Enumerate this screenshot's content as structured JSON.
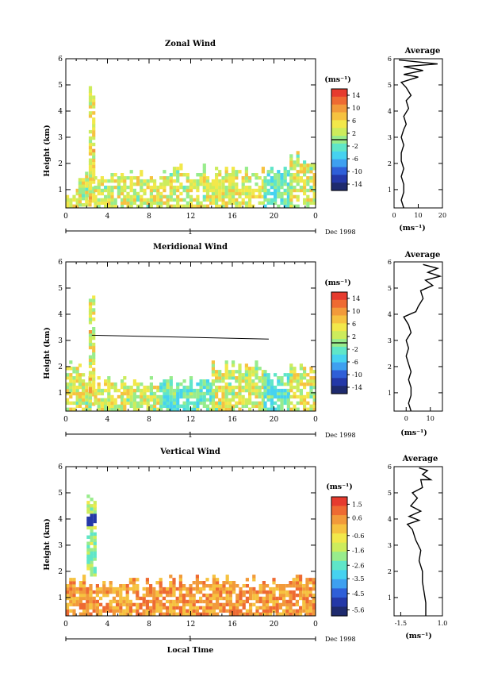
{
  "chart_data": [
    {
      "type": "heatmap",
      "title": "Zonal Wind",
      "ylabel": "Height (km)",
      "xlabel": "",
      "x_ticks": [
        "0",
        "4",
        "8",
        "12",
        "16",
        "20",
        "0"
      ],
      "xlim": [
        0,
        24
      ],
      "ylim": [
        0.3,
        6
      ],
      "y_ticks": [
        "1",
        "2",
        "3",
        "4",
        "5",
        "6"
      ],
      "day_label": "1",
      "month_label": "Dec 1998",
      "colorbar": {
        "unit": "(ms⁻¹)",
        "labels": [
          "14",
          "10",
          "6",
          "2",
          "-2",
          "-6",
          "-10",
          "-14"
        ],
        "range": [
          -16,
          16
        ],
        "zero_line": 0
      },
      "profile": {
        "title": "Average",
        "xlabel": "(ms⁻¹)",
        "x_ticks": [
          "0",
          "10",
          "20"
        ],
        "xlim": [
          0,
          20
        ],
        "y_ticks": [
          "1",
          "2",
          "3",
          "4",
          "5",
          "6"
        ],
        "points": [
          [
            4,
            0.3
          ],
          [
            3,
            0.6
          ],
          [
            4,
            0.9
          ],
          [
            4,
            1.2
          ],
          [
            3,
            1.5
          ],
          [
            4,
            1.8
          ],
          [
            3,
            2.1
          ],
          [
            3,
            2.4
          ],
          [
            4,
            2.7
          ],
          [
            3,
            3
          ],
          [
            4,
            3.3
          ],
          [
            5,
            3.5
          ],
          [
            4,
            3.8
          ],
          [
            6,
            4.1
          ],
          [
            5,
            4.4
          ],
          [
            7,
            4.6
          ],
          [
            5,
            4.9
          ],
          [
            3,
            5.1
          ],
          [
            10,
            5.3
          ],
          [
            4,
            5.4
          ],
          [
            12,
            5.55
          ],
          [
            4,
            5.7
          ],
          [
            18,
            5.8
          ],
          [
            2,
            5.95
          ]
        ]
      },
      "field": {
        "bins": [
          [
            0,
            1.2,
            0.3,
            1.1,
            "low"
          ],
          [
            1.2,
            2.2,
            0.35,
            1.6,
            "mid"
          ],
          [
            2.2,
            2.7,
            0.5,
            5.0,
            "mixpos"
          ],
          [
            2.7,
            5.5,
            0.3,
            1.6,
            "mid"
          ],
          [
            5.5,
            9,
            0.3,
            1.7,
            "mid"
          ],
          [
            9,
            14,
            0.3,
            1.9,
            "mid"
          ],
          [
            14,
            19,
            0.3,
            1.9,
            "low"
          ],
          [
            19,
            21.5,
            0.3,
            2.0,
            "cyan"
          ],
          [
            21.5,
            24,
            0.3,
            2.4,
            "mid"
          ]
        ]
      }
    },
    {
      "type": "heatmap",
      "title": "Meridional Wind",
      "ylabel": "Height (km)",
      "xlabel": "",
      "x_ticks": [
        "0",
        "4",
        "8",
        "12",
        "16",
        "20",
        "0"
      ],
      "xlim": [
        0,
        24
      ],
      "ylim": [
        0.3,
        6
      ],
      "y_ticks": [
        "1",
        "2",
        "3",
        "4",
        "5",
        "6"
      ],
      "day_label": "1",
      "month_label": "Dec 1998",
      "colorbar": {
        "unit": "(ms⁻¹)",
        "labels": [
          "14",
          "10",
          "6",
          "2",
          "-2",
          "-6",
          "-10",
          "-14"
        ],
        "range": [
          -16,
          16
        ],
        "zero_line": 0
      },
      "profile": {
        "title": "Average",
        "xlabel": "(ms⁻¹)",
        "x_ticks": [
          "0",
          "10"
        ],
        "xlim": [
          -5,
          15
        ],
        "y_ticks": [
          "1",
          "2",
          "3",
          "4",
          "5",
          "6"
        ],
        "points": [
          [
            2,
            0.3
          ],
          [
            1,
            0.6
          ],
          [
            2,
            0.9
          ],
          [
            2,
            1.2
          ],
          [
            1,
            1.5
          ],
          [
            2,
            1.8
          ],
          [
            1,
            2.1
          ],
          [
            0,
            2.4
          ],
          [
            1,
            2.7
          ],
          [
            0,
            3.0
          ],
          [
            2,
            3.3
          ],
          [
            1,
            3.6
          ],
          [
            -1,
            3.9
          ],
          [
            4,
            4.1
          ],
          [
            5,
            4.3
          ],
          [
            7,
            4.6
          ],
          [
            6,
            4.9
          ],
          [
            11,
            5.1
          ],
          [
            8,
            5.3
          ],
          [
            14,
            5.45
          ],
          [
            9,
            5.6
          ],
          [
            13,
            5.75
          ],
          [
            7,
            5.9
          ]
        ]
      },
      "field": {
        "bins": [
          [
            0,
            1.2,
            0.3,
            2.2,
            "mid"
          ],
          [
            1.2,
            2.2,
            0.3,
            2.0,
            "mid"
          ],
          [
            2.2,
            2.7,
            0.5,
            5.0,
            "mixpos"
          ],
          [
            2.7,
            5.5,
            0.3,
            1.6,
            "mid"
          ],
          [
            5.5,
            9,
            0.3,
            1.7,
            "mid"
          ],
          [
            9,
            14,
            0.3,
            1.7,
            "cyan"
          ],
          [
            14,
            19,
            0.3,
            2.2,
            "mid"
          ],
          [
            19,
            21.5,
            0.3,
            1.9,
            "cyan"
          ],
          [
            21.5,
            24,
            0.3,
            2.2,
            "mid"
          ]
        ]
      },
      "annotation_line": {
        "from": [
          2.5,
          3.2
        ],
        "to": [
          19.5,
          3.05
        ]
      }
    },
    {
      "type": "heatmap",
      "title": "Vertical Wind",
      "ylabel": "Height (km)",
      "xlabel": "Local Time",
      "x_ticks": [
        "0",
        "4",
        "8",
        "12",
        "16",
        "20",
        "0"
      ],
      "xlim": [
        0,
        24
      ],
      "ylim": [
        0.3,
        6
      ],
      "y_ticks": [
        "1",
        "2",
        "3",
        "4",
        "5",
        "6"
      ],
      "day_label": "1",
      "month_label": "Dec 1998",
      "colorbar": {
        "unit": "(ms⁻¹)",
        "labels": [
          "1.5",
          "0.6",
          "-0.6",
          "-1.6",
          "-2.6",
          "-3.5",
          "-4.5",
          "-5.6"
        ],
        "range": [
          -6,
          2
        ],
        "zero_line": null
      },
      "profile": {
        "title": "Average",
        "xlabel": "(ms⁻¹)",
        "x_ticks": [
          "-1.5",
          "1.0"
        ],
        "xlim": [
          -1.9,
          1.0
        ],
        "y_ticks": [
          "1",
          "2",
          "3",
          "4",
          "5",
          "6"
        ],
        "points": [
          [
            0,
            0.3
          ],
          [
            0,
            0.8
          ],
          [
            -0.1,
            1.2
          ],
          [
            -0.2,
            1.6
          ],
          [
            -0.2,
            2.0
          ],
          [
            -0.4,
            2.4
          ],
          [
            -0.3,
            2.8
          ],
          [
            -0.6,
            3.2
          ],
          [
            -0.8,
            3.6
          ],
          [
            -1.1,
            3.8
          ],
          [
            -0.4,
            3.95
          ],
          [
            -1.0,
            4.1
          ],
          [
            -0.3,
            4.3
          ],
          [
            -0.9,
            4.5
          ],
          [
            -0.5,
            4.8
          ],
          [
            -0.8,
            5.0
          ],
          [
            -0.2,
            5.2
          ],
          [
            -0.3,
            5.5
          ],
          [
            0.3,
            5.5
          ],
          [
            -0.2,
            5.7
          ],
          [
            0.1,
            5.85
          ],
          [
            -0.4,
            5.95
          ]
        ]
      },
      "field": {
        "bins": [
          [
            0,
            24,
            0.3,
            1.8,
            "warm"
          ],
          [
            2.0,
            2.7,
            1.8,
            5.0,
            "updraft"
          ]
        ]
      }
    }
  ]
}
